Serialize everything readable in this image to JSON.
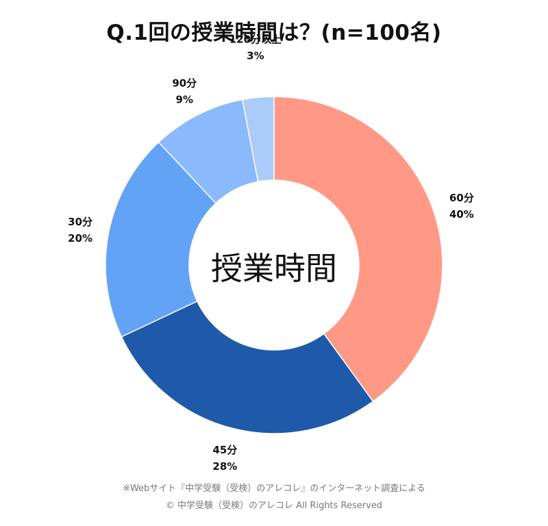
{
  "title": "Q.1回の授業時間は？(n=100名)",
  "center_label": "授業時間",
  "footer": {
    "line1": "※Webサイト『中学受験（受検）のアレコレ』のインターネット調査による",
    "line2": "© 中学受験（受検）のアレコレ All Rights Reserved"
  },
  "chart_data": {
    "type": "pie",
    "title": "Q.1回の授業時間は？(n=100名)",
    "center_label": "授業時間",
    "slices": [
      {
        "label": "60分",
        "value": 40,
        "percent_label": "40%",
        "color": "#FF9986"
      },
      {
        "label": "45分",
        "value": 28,
        "percent_label": "28%",
        "color": "#1F5AAA"
      },
      {
        "label": "30分",
        "value": 20,
        "percent_label": "20%",
        "color": "#62A3F6"
      },
      {
        "label": "90分",
        "value": 9,
        "percent_label": "9%",
        "color": "#8AB9FC"
      },
      {
        "label": "120分以上",
        "value": 3,
        "percent_label": "3%",
        "color": "#ABCBF8"
      }
    ]
  }
}
